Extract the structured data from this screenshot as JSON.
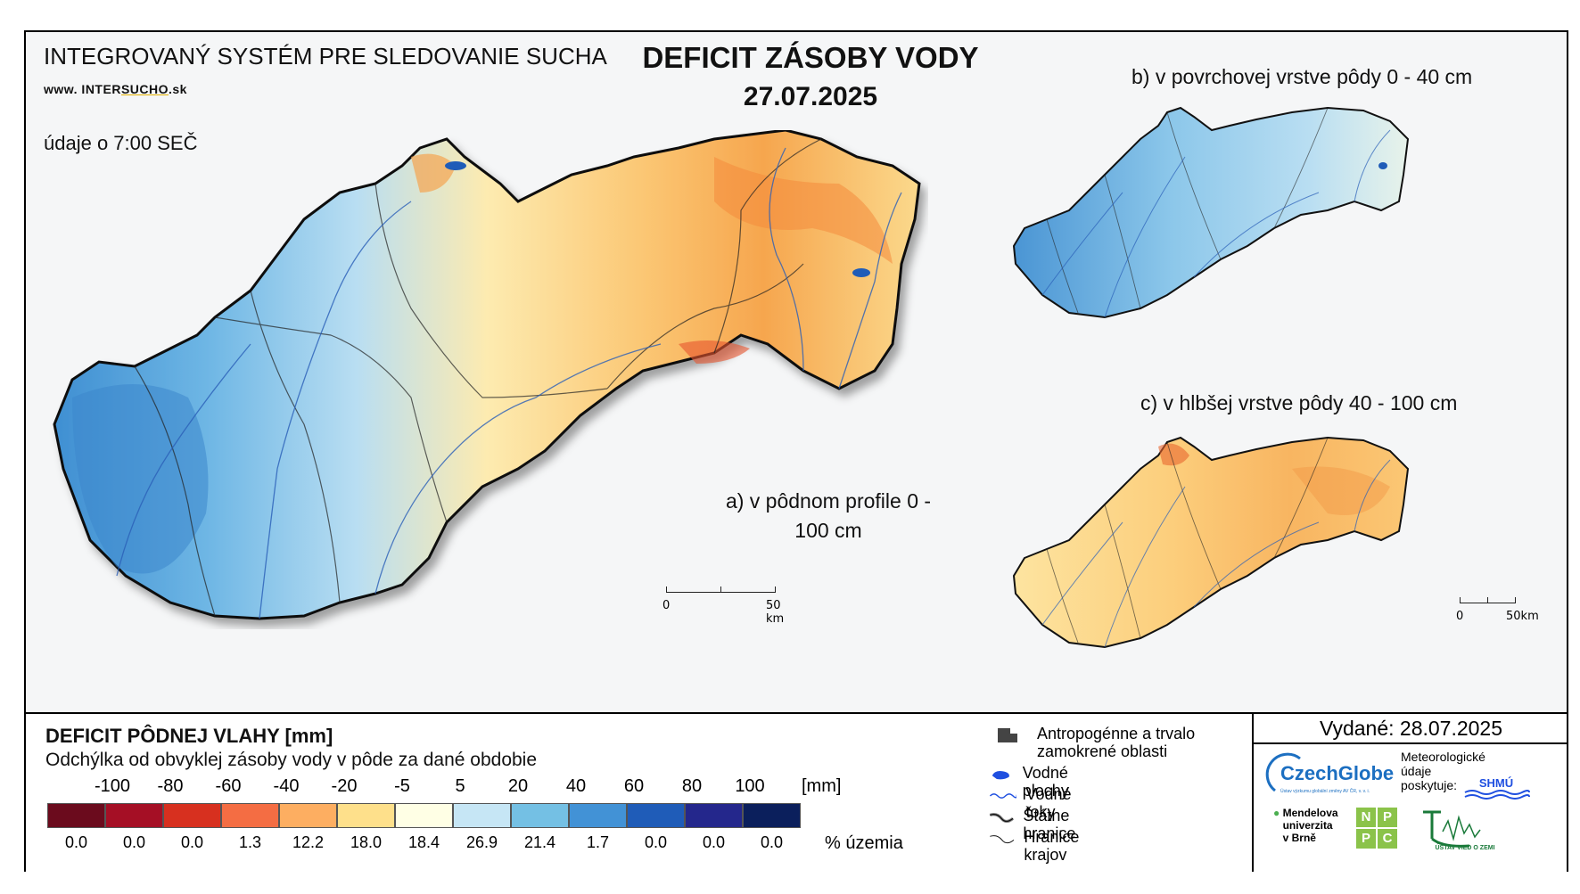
{
  "header": {
    "system_title": "INTEGROVANÝ SYSTÉM PRE SLEDOVANIE SUCHA",
    "url_prefix": "www. INTER",
    "url_brand": "SUCHO",
    "url_suffix": ".sk",
    "data_time": "údaje o 7:00 SEČ",
    "title": "DEFICIT ZÁSOBY VODY",
    "date": "27.07.2025"
  },
  "maps": {
    "a_label": "a) v pôdnom profile 0 - 100 cm",
    "b_label": "b) v povrchovej vrstve pôdy 0 - 40 cm",
    "c_label": "c) v hlbšej vrstve pôdy 40 - 100 cm",
    "scale_zero": "0",
    "scale_end": "50 km",
    "scale_end_small": "50km"
  },
  "legend": {
    "title": "DEFICIT PÔDNEJ VLAHY [mm]",
    "subtitle": "Odchýlka od obvyklej zásoby vody v pôde za dané obdobie",
    "unit": "[mm]",
    "edges": [
      "-100",
      "-80",
      "-60",
      "-40",
      "-20",
      "-5",
      "5",
      "20",
      "40",
      "60",
      "80",
      "100"
    ],
    "colors": [
      "#6b0b1d",
      "#a50f25",
      "#d7301f",
      "#f46d43",
      "#fdae61",
      "#fee08b",
      "#ffffe5",
      "#c6e6f5",
      "#74c0e4",
      "#4292d6",
      "#1f5cb8",
      "#24278c",
      "#0b1f5c"
    ],
    "percentages": [
      "0.0",
      "0.0",
      "0.0",
      "1.3",
      "12.2",
      "18.0",
      "18.4",
      "26.9",
      "21.4",
      "1.7",
      "0.0",
      "0.0",
      "0.0"
    ],
    "pct_label": "% územia"
  },
  "symbols": {
    "urban": "Antropogénne a trvalo zamokrené oblasti",
    "water_bodies": "Vodné plochy",
    "rivers": "Vodné toky",
    "state_border": "Štátne hranice",
    "region_border": "Hranice krajov"
  },
  "issued": "Vydané: 28.07.2025",
  "logos": {
    "czechglobe": "CzechGlobe",
    "czechglobe_sub": "Ústav výzkumu globální změny AV ČR, v. v. i.",
    "meteo": "Meteorologické údaje poskytuje:",
    "shmu": "SHMÚ",
    "mendel": "Mendelova univerzita v Brně",
    "nppc": [
      "N",
      "P",
      "P",
      "C"
    ],
    "uvz": "ÚSTAV VIED O ZEMI"
  }
}
